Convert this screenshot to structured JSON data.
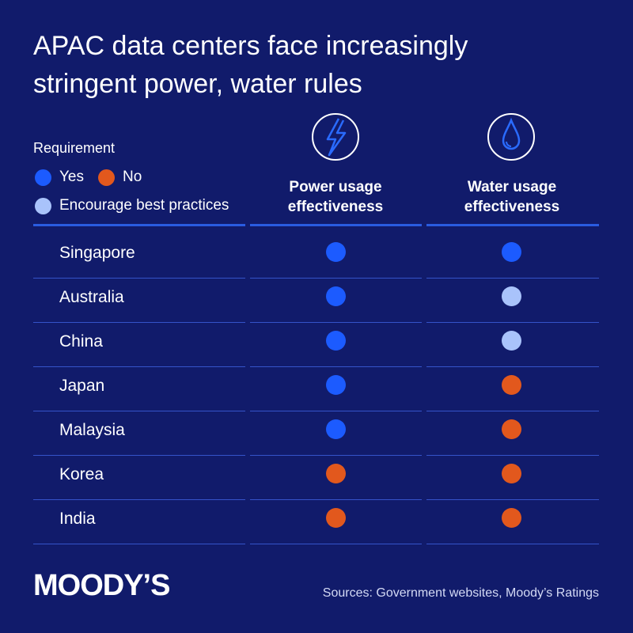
{
  "header": {
    "title": "APAC data centers face increasingly stringent power, water rules"
  },
  "legend": {
    "label": "Requirement",
    "items": [
      {
        "key": "yes",
        "text": "Yes",
        "color": "#1c5bff"
      },
      {
        "key": "no",
        "text": "No",
        "color": "#e2581d"
      },
      {
        "key": "encourage",
        "text": "Encourage best practices",
        "color": "#a9c3fb"
      }
    ]
  },
  "table": {
    "columns": [
      "Power usage effectiveness",
      "Water usage effectiveness"
    ],
    "rows": [
      {
        "country": "Singapore",
        "statuses": [
          "yes",
          "yes"
        ]
      },
      {
        "country": "Australia",
        "statuses": [
          "yes",
          "encourage"
        ]
      },
      {
        "country": "China",
        "statuses": [
          "yes",
          "encourage"
        ]
      },
      {
        "country": "Japan",
        "statuses": [
          "yes",
          "no"
        ]
      },
      {
        "country": "Malaysia",
        "statuses": [
          "yes",
          "no"
        ]
      },
      {
        "country": "Korea",
        "statuses": [
          "no",
          "no"
        ]
      },
      {
        "country": "India",
        "statuses": [
          "no",
          "no"
        ]
      }
    ]
  },
  "footer": {
    "logo": "MOODY’S",
    "source": "Sources: Government websites, Moody’s Ratings"
  }
}
